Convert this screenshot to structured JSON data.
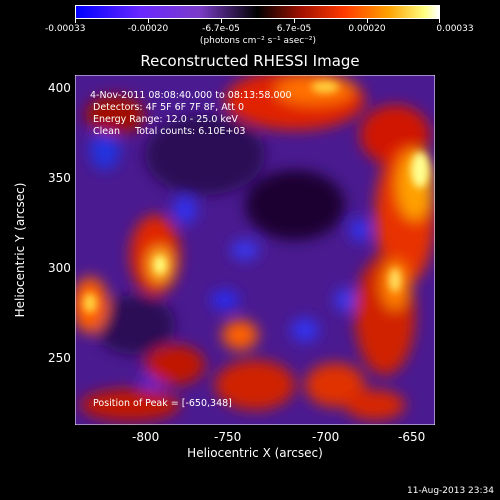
{
  "colorbar": {
    "ticks": [
      "-0.00033",
      "-0.00020",
      "-6.7e-05",
      "6.7e-05",
      "0.00020",
      "0.00033"
    ],
    "unit": "(photons cm⁻² s⁻¹ asec⁻²)"
  },
  "title": "Reconstructed RHESSI Image",
  "annotations": {
    "time": "4-Nov-2011 08:08:40.000 to 08:13:58.000",
    "detectors": "Detectors: 4F 5F 6F 7F 8F, Att 0",
    "energy": "Energy Range: 12.0 - 25.0 keV",
    "clean": "Clean     Total counts: 6.10E+03",
    "peak": "Position of Peak = [-650,348]"
  },
  "axes": {
    "xlabel": "Heliocentric X (arcsec)",
    "ylabel": "Heliocentric Y (arcsec)",
    "xticks": [
      "-800",
      "-750",
      "-700",
      "-650"
    ],
    "yticks": [
      "400",
      "350",
      "300",
      "250"
    ]
  },
  "date": "11-Aug-2013 23:34"
}
